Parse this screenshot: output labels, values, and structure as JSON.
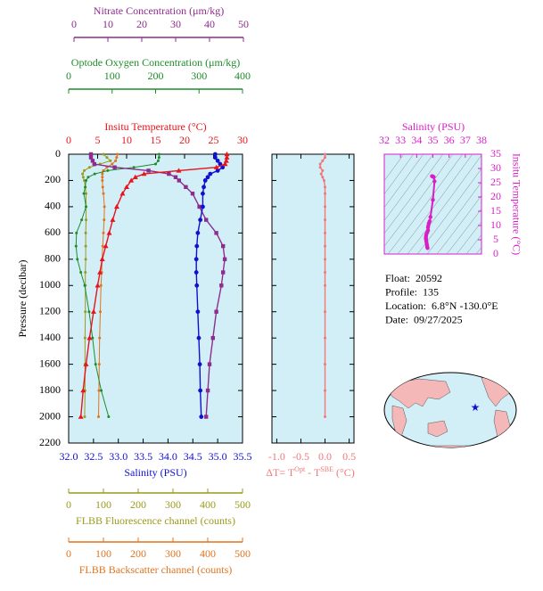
{
  "chart_data": [
    {
      "type": "profile",
      "ylabel": "Pressure (decibar)",
      "ylim": [
        0,
        2200
      ],
      "yticks": [
        0,
        200,
        400,
        600,
        800,
        1000,
        1200,
        1400,
        1600,
        1800,
        2000,
        2200
      ],
      "pressure": [
        0,
        25,
        50,
        75,
        100,
        125,
        150,
        175,
        200,
        250,
        300,
        400,
        500,
        600,
        700,
        800,
        900,
        1000,
        1200,
        1400,
        1600,
        1800,
        2000
      ],
      "axes": [
        {
          "label": "Nitrate Concentration (μm/kg)",
          "color": "#8e2c8e",
          "marker": "square",
          "xlim": [
            0,
            50
          ],
          "xticks": [
            0,
            10,
            20,
            30,
            40,
            50
          ],
          "values": [
            5,
            5,
            5.5,
            6,
            12,
            22,
            28,
            30,
            31,
            33,
            35,
            37,
            39,
            42,
            44,
            44.5,
            44,
            43.5,
            42,
            41,
            40,
            39.5,
            39
          ]
        },
        {
          "label": "Optode Oxygen Concentration (μm/kg)",
          "color": "#1e8c2a",
          "marker": "dot",
          "xlim": [
            0,
            400
          ],
          "xticks": [
            0,
            100,
            200,
            300,
            400
          ],
          "values": [
            208,
            208,
            206,
            200,
            150,
            90,
            60,
            45,
            40,
            38,
            35,
            40,
            30,
            18,
            17,
            20,
            28,
            37,
            47,
            55,
            62,
            75,
            92
          ]
        },
        {
          "label": "Insitu Temperature (°C)",
          "color": "#e8131b",
          "marker": "triangle",
          "xlim": [
            0,
            30
          ],
          "xticks": [
            0,
            5,
            10,
            15,
            20,
            25,
            30
          ],
          "values": [
            27.3,
            27.3,
            27.2,
            27.0,
            25.5,
            19,
            13,
            11.5,
            10.8,
            10,
            9.3,
            8.3,
            7.6,
            7.0,
            6.4,
            5.8,
            5.4,
            5.0,
            4.3,
            3.6,
            3.0,
            2.5,
            2.1
          ]
        },
        {
          "label": "Salinity (PSU)",
          "color": "#1010d0",
          "marker": "circle",
          "xlim": [
            32,
            35.5
          ],
          "xticks": [
            {
              "value": 32,
              "label": "32.0"
            },
            32.5,
            {
              "value": 33,
              "label": "33.0"
            },
            33.5,
            {
              "value": 34,
              "label": "34.0"
            },
            34.5,
            {
              "value": 35,
              "label": "35.0"
            },
            35.5
          ],
          "values": [
            34.95,
            34.95,
            35.0,
            35.05,
            35.1,
            35.0,
            34.85,
            34.8,
            34.75,
            34.72,
            34.7,
            34.7,
            34.65,
            34.6,
            34.58,
            34.57,
            34.57,
            34.58,
            34.6,
            34.62,
            34.64,
            34.65,
            34.67
          ]
        },
        {
          "label": "FLBB Fluorescence channel (counts)",
          "color": "#9a9a1c",
          "marker": "dot",
          "xlim": [
            0,
            500
          ],
          "xticks": [
            0,
            100,
            200,
            300,
            400,
            500
          ],
          "values": [
            100,
            110,
            120,
            90,
            60,
            45,
            40,
            42,
            45,
            48,
            50,
            50,
            50,
            49,
            49,
            49,
            48,
            48,
            48,
            47,
            47,
            47,
            46
          ]
        },
        {
          "label": "FLBB Backscatter channel (counts)",
          "color": "#e0731e",
          "marker": "dot",
          "xlim": [
            0,
            500
          ],
          "xticks": [
            0,
            100,
            200,
            300,
            400,
            500
          ],
          "values": [
            140,
            138,
            135,
            125,
            110,
            100,
            97,
            97,
            97,
            98,
            100,
            103,
            102,
            100,
            98,
            96,
            95,
            93,
            91,
            89,
            88,
            87,
            86
          ]
        }
      ]
    },
    {
      "type": "profile",
      "xlabel_parts": [
        "ΔT= T",
        "Opt",
        " - T",
        "SBE",
        " (°C)"
      ],
      "color": "#f07878",
      "xlim": [
        -1.1,
        0.6
      ],
      "xticks": [
        {
          "value": -1,
          "label": "-1.0"
        },
        -0.5,
        {
          "value": 0,
          "label": "0.0"
        },
        0.5
      ],
      "values": [
        0.0,
        0.0,
        -0.05,
        -0.1,
        -0.1,
        -0.05,
        -0.08,
        -0.05,
        -0.02,
        0,
        0,
        0,
        0,
        0,
        0,
        0,
        0,
        0,
        0,
        0,
        0,
        0,
        0
      ]
    },
    {
      "type": "ts",
      "xlabel": "Salinity (PSU)",
      "ylabel": "Insitu Temperature (°C)",
      "color": "#d81ec8",
      "xlim": [
        32,
        38
      ],
      "xticks": [
        32,
        33,
        34,
        35,
        36,
        37,
        38
      ],
      "ylim": [
        0,
        35
      ],
      "yticks": [
        0,
        5,
        10,
        15,
        20,
        25,
        30,
        35
      ]
    }
  ],
  "info": [
    {
      "label": "Float:",
      "value": "20592"
    },
    {
      "label": "Profile:",
      "value": "135"
    },
    {
      "label": "Location:",
      "value": "6.8°N -130.0°E"
    },
    {
      "label": "Date:",
      "value": "09/27/2025"
    }
  ]
}
